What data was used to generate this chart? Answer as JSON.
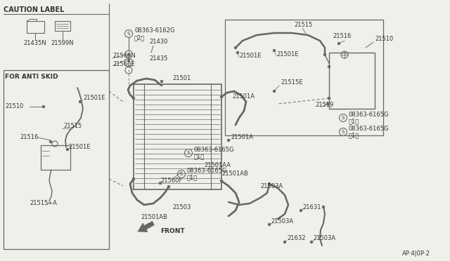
{
  "bg_color": "#f0f0eb",
  "line_color": "#666666",
  "text_color": "#333333",
  "title_text": "AP·4|0P·2",
  "fig_width": 6.4,
  "fig_height": 3.72,
  "dpi": 100,
  "labels": {
    "caution_label": "CAUTION LABEL",
    "for_anti_skid": "FOR ANTI SKID",
    "front_arrow": "FRONT",
    "p21435N": "21435N",
    "p21599N": "21599N",
    "p21510_left": "21510",
    "p21516_left": "21516",
    "p21515_left": "21515",
    "p21501E_left1": "21501E",
    "p21501E_left2": "21501E",
    "p21515A": "21515+A",
    "p21560N": "21560N",
    "p21560E": "21560E",
    "p21430": "21430",
    "p21435": "21435",
    "p08363_6162G": "08363-6162G",
    "p2_bracket": "（2）",
    "p21501": "21501",
    "p21501A_mid": "21501A",
    "p21501A_right": "21501A",
    "p21501AA": "21501AA",
    "p21501AB_mid": "21501AB",
    "p21501AB_bot": "21501AB",
    "p21503": "21503",
    "p21503A_1": "21503A",
    "p21503A_2": "21503A",
    "p21503A_3": "21503A",
    "p21631": "21631",
    "p21632": "21632",
    "p21560F": "21560F",
    "p08363_6165G_1": "08363-6165G",
    "p1_bracket_1": "（1）",
    "p08363_6165G_2": "08363-6165G",
    "p1_bracket_2": "（1）",
    "p08363_6165G_3": "08363-6165G",
    "p1_bracket_3": "（1）",
    "p21515_top": "21515",
    "p21516_top": "21516",
    "p21510_top": "21510",
    "p21501E_top1": "21501E",
    "p21501E_top2": "21501E",
    "p21515E": "21515E",
    "p21519": "21519"
  }
}
